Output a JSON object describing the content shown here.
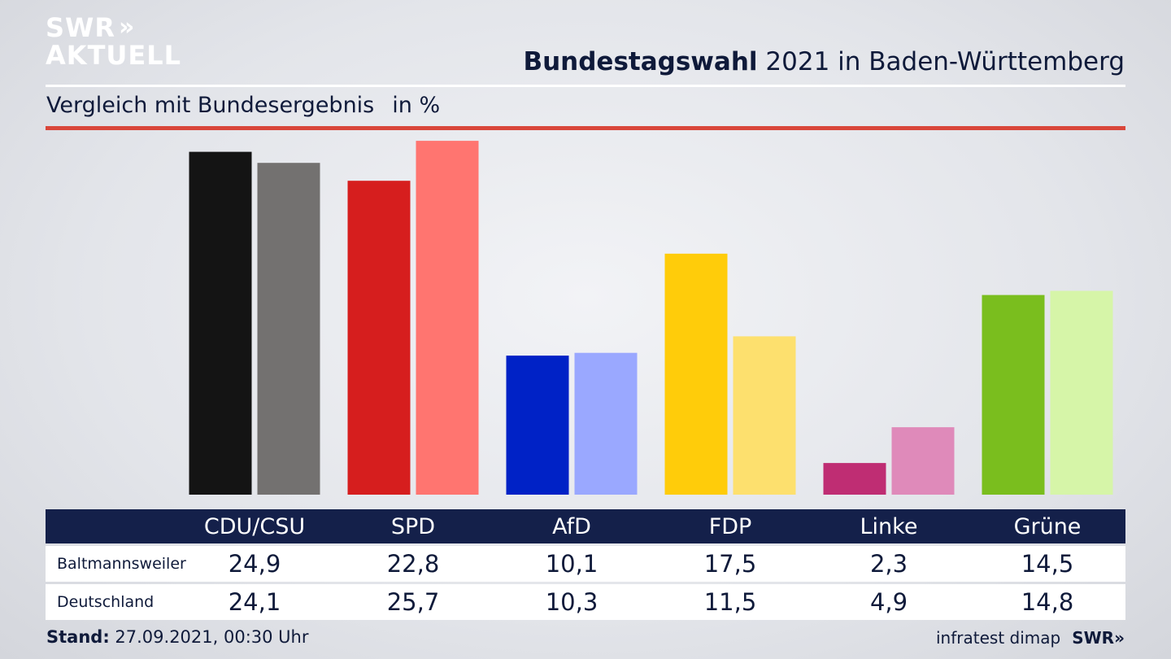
{
  "brand": {
    "line1": "SWR",
    "line2": "AKTUELL",
    "chevrons": "»"
  },
  "header": {
    "title_bold": "Bundestagswahl",
    "title_rest": " 2021 in Baden-Württemberg",
    "subtitle": "Vergleich mit Bundesergebnis",
    "unit": "in %"
  },
  "chart_data": {
    "type": "bar",
    "categories": [
      "CDU/CSU",
      "SPD",
      "AfD",
      "FDP",
      "Linke",
      "Grüne"
    ],
    "series": [
      {
        "name": "Baltmannsweiler",
        "values": [
          24.9,
          22.8,
          10.1,
          17.5,
          2.3,
          14.5
        ]
      },
      {
        "name": "Deutschland",
        "values": [
          24.1,
          25.7,
          10.3,
          11.5,
          4.9,
          14.8
        ]
      }
    ],
    "colors": {
      "Baltmannsweiler": [
        "#141414",
        "#d61e1e",
        "#0022c6",
        "#ffcc0a",
        "#bf2d73",
        "#7abe1e"
      ],
      "Deutschland": [
        "#737170",
        "#ff7570",
        "#9aa8ff",
        "#fde06e",
        "#df8aba",
        "#d6f5a8"
      ]
    },
    "ylim": [
      0,
      26
    ],
    "value_labels": {
      "Baltmannsweiler": [
        "24,9",
        "22,8",
        "10,1",
        "17,5",
        "2,3",
        "14,5"
      ],
      "Deutschland": [
        "24,1",
        "25,7",
        "10,3",
        "11,5",
        "4,9",
        "14,8"
      ]
    }
  },
  "footer": {
    "stand_label": "Stand:",
    "stand_value": " 27.09.2021, 00:30 Uhr",
    "source": "infratest dimap",
    "brand": "SWR»"
  }
}
